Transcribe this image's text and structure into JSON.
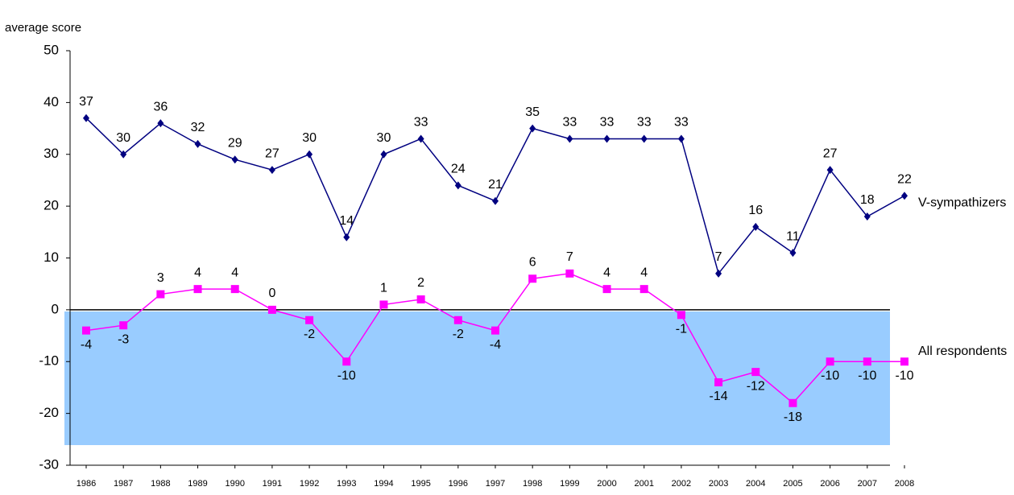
{
  "chart_data": {
    "type": "line",
    "ylabel": "average score",
    "categories": [
      "1986",
      "1987",
      "1988",
      "1989",
      "1990",
      "1991",
      "1992",
      "1993",
      "1994",
      "1995",
      "1996",
      "1997",
      "1998",
      "1999",
      "2000",
      "2001",
      "2002",
      "2003",
      "2004",
      "2005",
      "2006",
      "2007",
      "2008"
    ],
    "series": [
      {
        "name": "V-sympathizers",
        "color": "#000080",
        "marker": "diamond",
        "values": [
          37,
          30,
          36,
          32,
          29,
          27,
          30,
          14,
          30,
          33,
          24,
          21,
          35,
          33,
          33,
          33,
          33,
          7,
          16,
          11,
          27,
          18,
          22
        ]
      },
      {
        "name": "All respondents",
        "color": "#ff00ff",
        "marker": "square",
        "values": [
          -4,
          -3,
          3,
          4,
          4,
          0,
          -2,
          -10,
          1,
          2,
          -2,
          -4,
          6,
          7,
          4,
          4,
          -1,
          -14,
          -12,
          -18,
          -10,
          -10,
          -10
        ]
      }
    ],
    "ylim": [
      -30,
      50
    ],
    "yticks": [
      -30,
      -20,
      -10,
      0,
      10,
      20,
      30,
      40,
      50
    ],
    "data_labels": true
  }
}
